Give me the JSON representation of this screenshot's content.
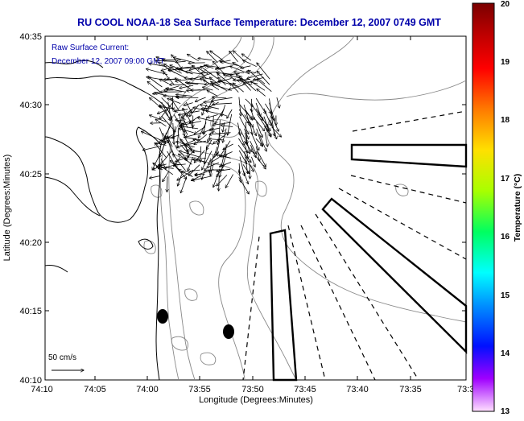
{
  "title": "RU COOL  NOAA-18  Sea Surface Temperature:  December 12, 2007 0749 GMT",
  "legend": {
    "line1": "Raw Surface Current:",
    "line2": "December 12, 2007 09:00 GMT"
  },
  "scale_label": "50 cm/s",
  "axes": {
    "xlabel": "Longitude (Degrees:Minutes)",
    "ylabel": "Latitude (Degrees:Minutes)",
    "xticks": [
      "74:10",
      "74:05",
      "74:00",
      "73:55",
      "73:50",
      "73:45",
      "73:40",
      "73:35",
      "73:3"
    ],
    "yticks": [
      "40:35",
      "40:30",
      "40:25",
      "40:20",
      "40:15",
      "40:10"
    ]
  },
  "colorbar": {
    "label": "Temperature (°C)",
    "ticks": [
      "20",
      "19",
      "18",
      "17",
      "16",
      "15",
      "14",
      "13"
    ]
  },
  "colors": {
    "title": "#0000aa",
    "legend_text": "#0000aa",
    "coast": "#000000",
    "contour": "#888888"
  }
}
